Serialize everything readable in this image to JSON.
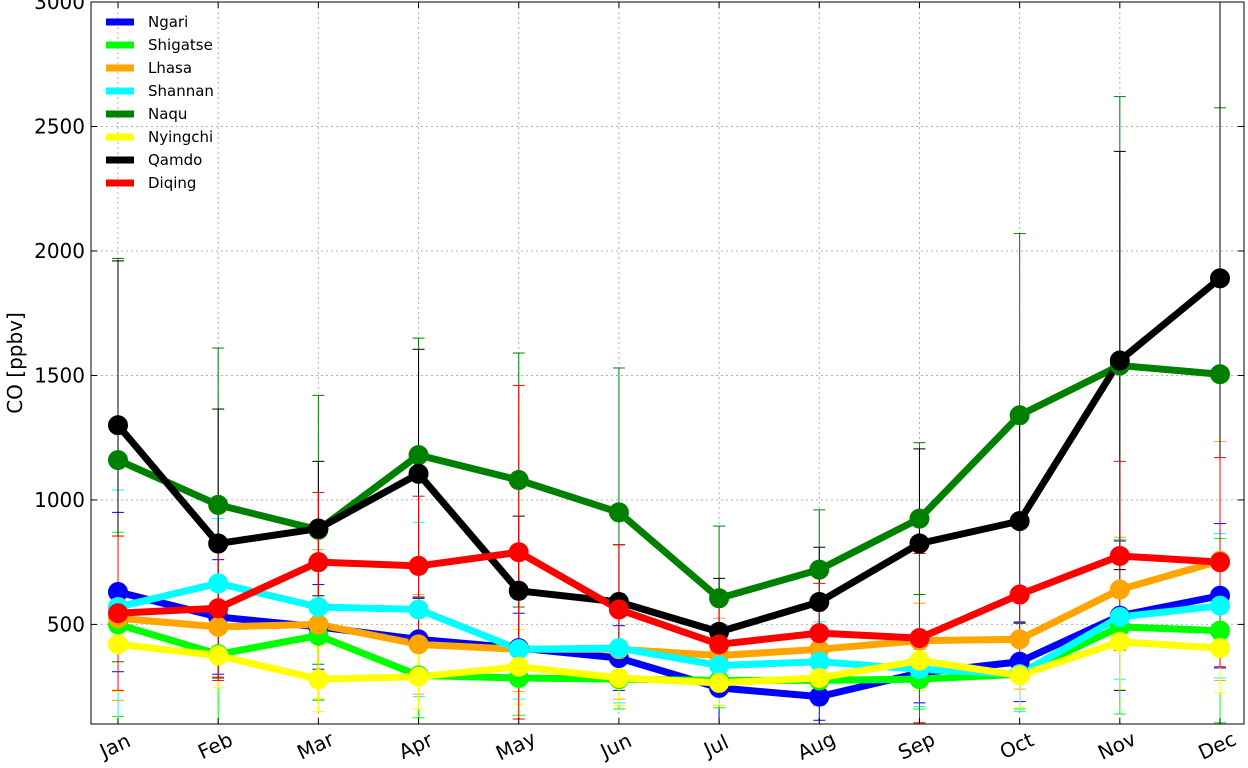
{
  "chart_data": {
    "type": "line",
    "title": "",
    "xlabel": "",
    "ylabel": "CO [ppbv]",
    "categories": [
      "Jan",
      "Feb",
      "Mar",
      "Apr",
      "May",
      "Jun",
      "Jul",
      "Aug",
      "Sep",
      "Oct",
      "Nov",
      "Dec"
    ],
    "ylim": [
      100,
      3000
    ],
    "yticks": [
      500,
      1000,
      1500,
      2000,
      2500,
      3000
    ],
    "grid": true,
    "legend_position": "top-left",
    "series": [
      {
        "name": "Ngari",
        "color": "#0000ff",
        "values": [
          630,
          530,
          490,
          440,
          405,
          365,
          245,
          210,
          305,
          350,
          535,
          615
        ],
        "error": [
          320,
          230,
          170,
          170,
          140,
          130,
          150,
          95,
          120,
          160,
          300,
          290
        ]
      },
      {
        "name": "Shigatse",
        "color": "#00ff00",
        "values": [
          500,
          380,
          455,
          295,
          285,
          280,
          275,
          275,
          280,
          300,
          490,
          475
        ],
        "error": [
          370,
          280,
          260,
          170,
          150,
          120,
          110,
          100,
          120,
          140,
          350,
          370
        ]
      },
      {
        "name": "Lhasa",
        "color": "#ffa500",
        "values": [
          525,
          490,
          500,
          420,
          400,
          400,
          375,
          400,
          435,
          440,
          640,
          755
        ],
        "error": [
          330,
          200,
          300,
          200,
          170,
          200,
          150,
          160,
          150,
          200,
          210,
          480
        ]
      },
      {
        "name": "Shannan",
        "color": "#00ffff",
        "values": [
          570,
          665,
          570,
          560,
          400,
          405,
          335,
          350,
          320,
          300,
          530,
          575
        ],
        "error": [
          470,
          260,
          290,
          350,
          200,
          220,
          160,
          160,
          150,
          150,
          250,
          290
        ]
      },
      {
        "name": "Naqu",
        "color": "#008000",
        "values": [
          1160,
          980,
          880,
          1180,
          1080,
          950,
          605,
          720,
          925,
          1340,
          1540,
          1505
        ],
        "error": [
          810,
          630,
          540,
          470,
          510,
          580,
          290,
          240,
          305,
          730,
          1080,
          1070
        ]
      },
      {
        "name": "Nyingchi",
        "color": "#ffff00",
        "values": [
          420,
          375,
          280,
          290,
          330,
          285,
          265,
          285,
          355,
          295,
          430,
          405
        ],
        "error": [
          190,
          130,
          130,
          130,
          150,
          110,
          90,
          90,
          120,
          130,
          190,
          180
        ]
      },
      {
        "name": "Qamdo",
        "color": "#000000",
        "values": [
          1300,
          825,
          885,
          1105,
          635,
          590,
          470,
          590,
          825,
          915,
          1560,
          1890
        ],
        "error": [
          660,
          540,
          270,
          500,
          300,
          230,
          215,
          220,
          380,
          410,
          840,
          1130
        ]
      },
      {
        "name": "Diqing",
        "color": "#ff0000",
        "values": [
          545,
          565,
          750,
          735,
          790,
          560,
          420,
          465,
          445,
          620,
          775,
          750
        ],
        "error": [
          310,
          290,
          280,
          280,
          670,
          260,
          200,
          200,
          340,
          280,
          380,
          420
        ]
      }
    ]
  }
}
